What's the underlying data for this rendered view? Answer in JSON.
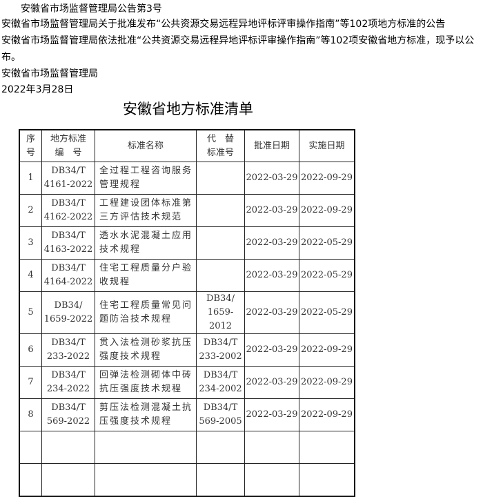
{
  "notice": {
    "heading": "安徽省市场监督管理局公告第3号",
    "subject": "安徽省市场监督管理局关于批准发布“公共资源交易远程异地评标评审操作指南”等102项地方标准的公告",
    "body_line1": "安徽省市场监督管理局依法批准“公共资源交易远程异地评标评审操作指南”等102项安徽省地方标准，现予以公",
    "body_line2": "布。",
    "issuer": "安徽省市场监督管理局",
    "date": "2022年3月28日"
  },
  "list_title": "安徽省地方标准清单",
  "table": {
    "headers": {
      "seq_1": "序",
      "seq_2": "号",
      "code_1": "地方标准",
      "code_2": "编　号",
      "name": "标准名称",
      "replace_1": "代　替",
      "replace_2": "标准号",
      "approve": "批准日期",
      "implement": "实施日期"
    },
    "rows": [
      {
        "seq": "1",
        "code1": "DB34/T",
        "code2": "4161-2022",
        "name": "全过程工程咨询服务管理规程",
        "rep1": "",
        "rep2": "",
        "approve": "2022-03-29",
        "implement": "2022-09-29"
      },
      {
        "seq": "2",
        "code1": "DB34/T",
        "code2": "4162-2022",
        "name": "工程建设团体标准第三方评估技术规范",
        "rep1": "",
        "rep2": "",
        "approve": "2022-03-29",
        "implement": "2022-09-29"
      },
      {
        "seq": "3",
        "code1": "DB34/T",
        "code2": "4163-2022",
        "name": "透水水泥混凝土应用技术规程",
        "rep1": "",
        "rep2": "",
        "approve": "2022-03-29",
        "implement": "2022-05-29"
      },
      {
        "seq": "4",
        "code1": "DB34/T",
        "code2": "4164-2022",
        "name": "住宅工程质量分户验收规程",
        "rep1": "",
        "rep2": "",
        "approve": "2022-03-29",
        "implement": "2022-05-29"
      },
      {
        "seq": "5",
        "code1": "DB34/",
        "code2": "1659-2022",
        "name": "住宅工程质量常见问题防治技术规程",
        "rep1": "DB34/",
        "rep2": "1659-2012",
        "approve": "2022-03-29",
        "implement": "2022-05-29"
      },
      {
        "seq": "6",
        "code1": "DB34/T",
        "code2": "233-2022",
        "name": "贯入法检测砂浆抗压强度技术规程",
        "rep1": "DB34/T",
        "rep2": "233-2002",
        "approve": "2022-03-29",
        "implement": "2022-09-29"
      },
      {
        "seq": "7",
        "code1": "DB34/T",
        "code2": "234-2022",
        "name": "回弹法检测砌体中砖抗压强度技术规程",
        "rep1": "DB34/T",
        "rep2": "234-2002",
        "approve": "2022-03-29",
        "implement": "2022-09-29"
      },
      {
        "seq": "8",
        "code1": "DB34/T",
        "code2": "569-2022",
        "name": "剪压法检测混凝土抗压强度技术规程",
        "rep1": "DB34/T",
        "rep2": "569-2005",
        "approve": "2022-03-29",
        "implement": "2022-09-29"
      }
    ]
  }
}
